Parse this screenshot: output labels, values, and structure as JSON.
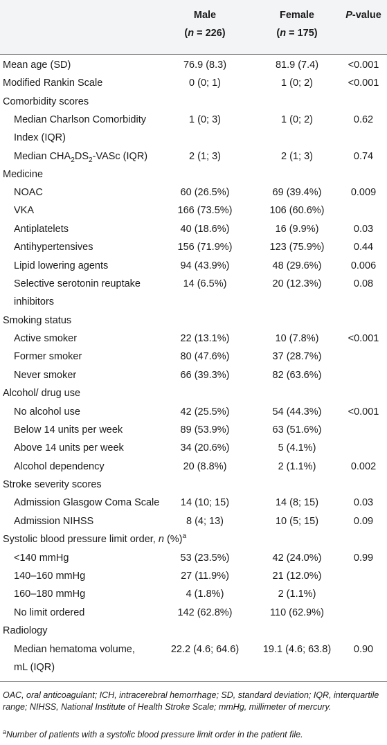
{
  "table": {
    "header": {
      "male_title": "Male",
      "male_n_sym": "n",
      "male_n_val": " = 226)",
      "female_title": "Female",
      "female_n_sym": "n",
      "female_n_val": " = 175)",
      "p_sym": "P",
      "p_rest": "-value"
    },
    "rows": [
      {
        "label": "Mean age (SD)",
        "male": "76.9 (8.3)",
        "female": "81.9 (7.4)",
        "p": "<0.001"
      },
      {
        "label": "Modified Rankin Scale",
        "male": "0 (0; 1)",
        "female": "1 (0; 2)",
        "p": "<0.001"
      },
      {
        "label": "Comorbidity scores"
      },
      {
        "label": "Median Charlson Comorbidity",
        "label2": "Index (IQR)",
        "male": "1 (0; 3)",
        "female": "1 (0; 2)",
        "p": "0.62"
      },
      {
        "label": "Median CHA2DS2-VASc (IQR)",
        "male": "2 (1; 3)",
        "female": "2 (1; 3)",
        "p": "0.74"
      },
      {
        "label": "Medicine"
      },
      {
        "label": "NOAC",
        "male": "60 (26.5%)",
        "female": "69 (39.4%)",
        "p": "0.009"
      },
      {
        "label": "VKA",
        "male": "166 (73.5%)",
        "female": "106 (60.6%)",
        "p": ""
      },
      {
        "label": "Antiplatelets",
        "male": "40 (18.6%)",
        "female": "16 (9.9%)",
        "p": "0.03"
      },
      {
        "label": "Antihypertensives",
        "male": "156 (71.9%)",
        "female": "123 (75.9%)",
        "p": "0.44"
      },
      {
        "label": "Lipid lowering agents",
        "male": "94 (43.9%)",
        "female": "48 (29.6%)",
        "p": "0.006"
      },
      {
        "label": "Selective serotonin reuptake",
        "label2": "inhibitors",
        "male": "14 (6.5%)",
        "female": "20 (12.3%)",
        "p": "0.08"
      },
      {
        "label": "Smoking status"
      },
      {
        "label": "Active smoker",
        "male": "22 (13.1%)",
        "female": "10 (7.8%)",
        "p": "<0.001"
      },
      {
        "label": "Former smoker",
        "male": "80 (47.6%)",
        "female": "37 (28.7%)",
        "p": ""
      },
      {
        "label": "Never smoker",
        "male": "66 (39.3%)",
        "female": "82 (63.6%)",
        "p": ""
      },
      {
        "label": "Alcohol/ drug use"
      },
      {
        "label": "No alcohol use",
        "male": "42 (25.5%)",
        "female": "54 (44.3%)",
        "p": "<0.001"
      },
      {
        "label": "Below 14 units per week",
        "male": "89 (53.9%)",
        "female": "63 (51.6%)",
        "p": ""
      },
      {
        "label": "Above 14 units per week",
        "male": "34 (20.6%)",
        "female": "5 (4.1%)",
        "p": ""
      },
      {
        "label": "Alcohol dependency",
        "male": "20 (8.8%)",
        "female": "2 (1.1%)",
        "p": "0.002"
      },
      {
        "label": "Stroke severity scores"
      },
      {
        "label": "Admission Glasgow Coma Scale",
        "male": "14 (10; 15)",
        "female": "14 (8; 15)",
        "p": "0.03"
      },
      {
        "label": "Admission NIHSS",
        "male": "8 (4; 13)",
        "female": "10 (5; 15)",
        "p": "0.09"
      },
      {
        "label": "Systolic blood pressure limit order, n (%)a"
      },
      {
        "label": "<140 mmHg",
        "male": "53 (23.5%)",
        "female": "42 (24.0%)",
        "p": "0.99"
      },
      {
        "label": "140–160 mmHg",
        "male": "27 (11.9%)",
        "female": "21 (12.0%)",
        "p": ""
      },
      {
        "label": "160–180 mmHg",
        "male": "4 (1.8%)",
        "female": "2 (1.1%)",
        "p": ""
      },
      {
        "label": "No limit ordered",
        "male": "142 (62.8%)",
        "female": "110 (62.9%)",
        "p": ""
      },
      {
        "label": "Radiology"
      },
      {
        "label": "Median hematoma volume,",
        "label2": "mL (IQR)",
        "male": "22.2 (4.6; 64.6)",
        "female": "19.1 (4.6; 63.8)",
        "p": "0.90"
      }
    ],
    "cha_pre": "Median CHA",
    "cha_sub1": "2",
    "cha_mid": "DS",
    "cha_sub2": "2",
    "cha_post": "-VASc (IQR)",
    "sbp_pre": "Systolic blood pressure limit order, ",
    "sbp_n": "n",
    "sbp_post": " (%)",
    "sbp_sup": "a"
  },
  "footnotes": {
    "abbreviations": "OAC, oral anticoagulant; ICH, intracerebral hemorrhage; SD, standard deviation; IQR, interquartile range; NIHSS, National Institute of Health Stroke Scale; mmHg, millimeter of mercury.",
    "a_mark": "a",
    "a_text": "Number of patients with a systolic blood pressure limit order in the patient file."
  }
}
